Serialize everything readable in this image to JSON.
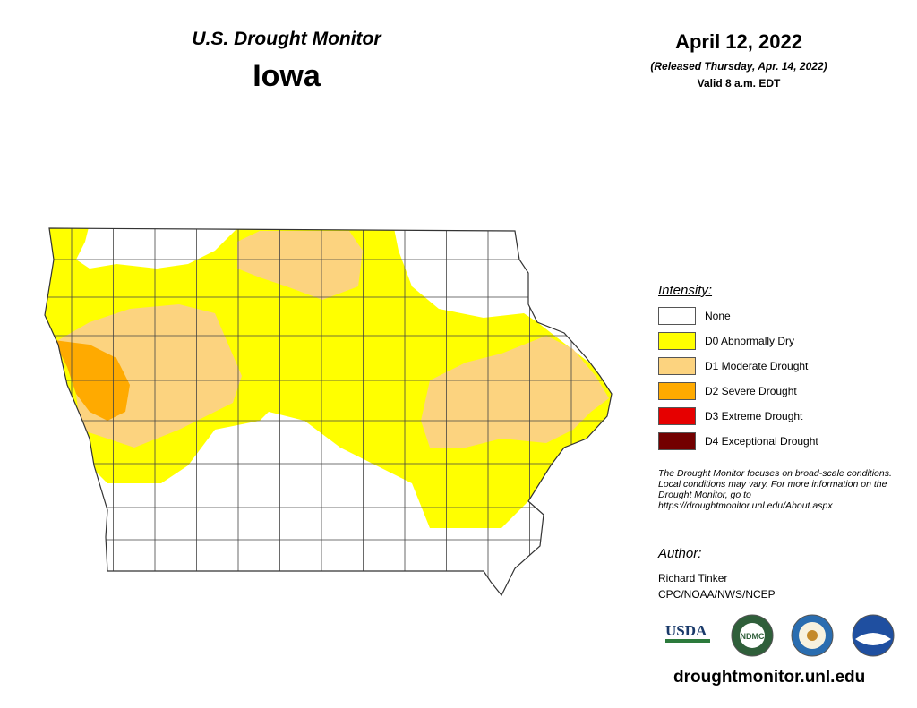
{
  "header": {
    "title": "U.S. Drought Monitor",
    "state": "Iowa",
    "date": "April 12, 2022",
    "released": "(Released Thursday, Apr. 14, 2022)",
    "valid": "Valid 8 a.m. EDT"
  },
  "legend": {
    "title": "Intensity:",
    "items": [
      {
        "label": "None",
        "color": "#ffffff"
      },
      {
        "label": "D0 Abnormally Dry",
        "color": "#ffff00"
      },
      {
        "label": "D1 Moderate Drought",
        "color": "#fcd37f"
      },
      {
        "label": "D2 Severe Drought",
        "color": "#ffaa00"
      },
      {
        "label": "D3 Extreme Drought",
        "color": "#e60000"
      },
      {
        "label": "D4 Exceptional Drought",
        "color": "#730000"
      }
    ]
  },
  "note": "The Drought Monitor focuses on broad-scale conditions. Local conditions may vary. For more information on the Drought Monitor, go to https://droughtmonitor.unl.edu/About.aspx",
  "author": {
    "label": "Author:",
    "name": "Richard Tinker",
    "org": "CPC/NOAA/NWS/NCEP"
  },
  "logos": {
    "usda": "USDA",
    "ndmc": "NDMC"
  },
  "website": "droughtmonitor.unl.edu"
}
